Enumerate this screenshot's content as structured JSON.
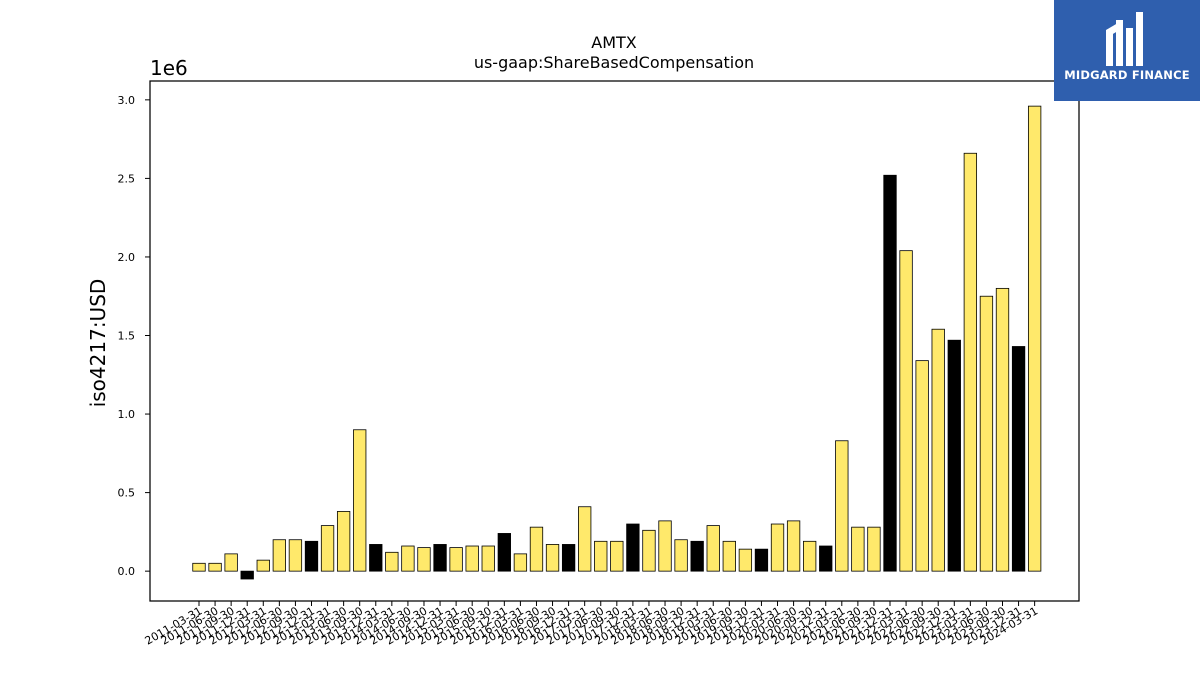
{
  "logo": {
    "text": "MIDGARD FINANCE",
    "icon": "midgard-logo-icon",
    "background": "#2f5fae"
  },
  "chart_data": {
    "type": "bar",
    "title": "AMTX",
    "subtitle": "us-gaap:ShareBasedCompensation",
    "ylabel": "iso4217:USD",
    "y_scale_label": "1e6",
    "ylim": [
      -0.19,
      3.12
    ],
    "yticks": [
      0.0,
      0.5,
      1.0,
      1.5,
      2.0,
      2.5,
      3.0
    ],
    "ytick_labels": [
      "0.0",
      "0.5",
      "1.0",
      "1.5",
      "2.0",
      "2.5",
      "3.0"
    ],
    "grid": false,
    "colors": {
      "quarterly": "#ffe96b",
      "annual": "#000000",
      "edge": "#000000"
    },
    "categories": [
      "2011-03-31",
      "2011-06-30",
      "2011-09-30",
      "2011-12-31",
      "2012-03-31",
      "2012-06-30",
      "2012-09-30",
      "2012-12-31",
      "2013-03-31",
      "2013-06-30",
      "2013-09-30",
      "2013-12-31",
      "2014-03-31",
      "2014-06-30",
      "2014-09-30",
      "2014-12-31",
      "2015-03-31",
      "2015-06-30",
      "2015-09-30",
      "2015-12-31",
      "2016-03-31",
      "2016-06-30",
      "2016-09-30",
      "2016-12-31",
      "2017-03-31",
      "2017-06-30",
      "2017-09-30",
      "2017-12-31",
      "2018-03-31",
      "2018-06-30",
      "2018-09-30",
      "2018-12-31",
      "2019-03-31",
      "2019-06-30",
      "2019-09-30",
      "2019-12-31",
      "2020-03-31",
      "2020-06-30",
      "2020-09-30",
      "2020-12-31",
      "2021-03-31",
      "2021-06-30",
      "2021-09-30",
      "2021-12-31",
      "2022-03-31",
      "2022-06-30",
      "2022-09-30",
      "2022-12-31",
      "2023-03-31",
      "2023-06-30",
      "2023-09-30",
      "2023-12-31",
      "2024-03-31"
    ],
    "values": [
      0.05,
      0.05,
      0.11,
      -0.05,
      0.07,
      0.2,
      0.2,
      0.19,
      0.29,
      0.38,
      0.9,
      0.17,
      0.12,
      0.16,
      0.15,
      0.17,
      0.15,
      0.16,
      0.16,
      0.24,
      0.11,
      0.28,
      0.17,
      0.17,
      0.41,
      0.19,
      0.19,
      0.3,
      0.26,
      0.32,
      0.2,
      0.19,
      0.29,
      0.19,
      0.14,
      0.14,
      0.3,
      0.32,
      0.19,
      0.16,
      0.83,
      0.28,
      0.28,
      2.52,
      2.04,
      1.34,
      1.54,
      1.47,
      2.66,
      1.75,
      1.8,
      1.43,
      2.96
    ],
    "annual": [
      false,
      false,
      false,
      true,
      false,
      false,
      false,
      true,
      false,
      false,
      false,
      true,
      false,
      false,
      false,
      true,
      false,
      false,
      false,
      true,
      false,
      false,
      false,
      true,
      false,
      false,
      false,
      true,
      false,
      false,
      false,
      true,
      false,
      false,
      false,
      true,
      false,
      false,
      false,
      true,
      false,
      false,
      false,
      true,
      false,
      false,
      false,
      true,
      false,
      false,
      false,
      true,
      false
    ]
  }
}
